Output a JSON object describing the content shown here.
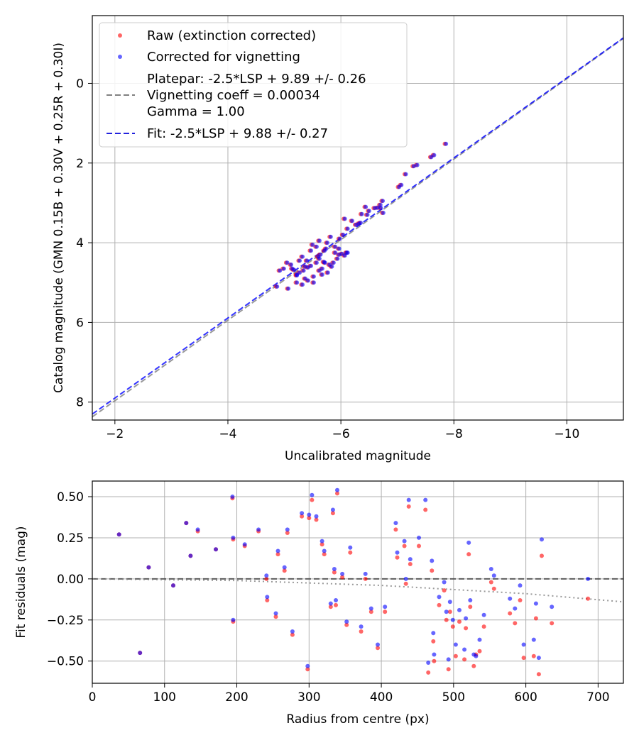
{
  "chart_data": [
    {
      "type": "scatter",
      "title": "",
      "xlabel": "Uncalibrated magnitude",
      "ylabel": "Catalog magnitude (GMN 0.15B + 0.30V + 0.25R + 0.30I)",
      "xlim": [
        -1.6,
        -11.0
      ],
      "ylim": [
        8.45,
        -1.7
      ],
      "x_inverted": true,
      "y_inverted": true,
      "xticks": [
        -2,
        -4,
        -6,
        -8,
        -10
      ],
      "xtick_labels": [
        "−2",
        "−4",
        "−6",
        "−8",
        "−10"
      ],
      "yticks": [
        0,
        2,
        4,
        6,
        8
      ],
      "ytick_labels": [
        "0",
        "2",
        "4",
        "6",
        "8"
      ],
      "grid": true,
      "legend": {
        "placement": "top-left",
        "entries": [
          "Raw (extinction corrected)",
          "Corrected for vignetting",
          "Platepar: -2.5*LSP + 9.89 +/- 0.26",
          "Vignetting coeff = 0.00034",
          "Gamma = 1.00",
          "Fit: -2.5*LSP + 9.88 +/- 0.27"
        ]
      },
      "series": [
        {
          "name": "Raw (extinction corrected)",
          "color": "#ff0000",
          "marker": "dot",
          "x": [
            -7.84,
            -7.63,
            -7.58,
            -7.33,
            -7.27,
            -7.13,
            -7.05,
            -7.01,
            -6.69,
            -6.73,
            -6.63,
            -6.58,
            -6.45,
            -6.42,
            -6.35,
            -6.3,
            -6.72,
            -6.68,
            -6.48,
            -6.33,
            -6.25,
            -6.18,
            -6.05,
            -6.1,
            -6.02,
            -5.96,
            -5.95,
            -6.08,
            -5.88,
            -5.8,
            -5.74,
            -5.69,
            -5.62,
            -5.6,
            -5.55,
            -5.45,
            -5.4,
            -5.32,
            -5.25,
            -5.2,
            -5.15,
            -5.1,
            -5.03,
            -4.97,
            -4.9,
            -4.85,
            -5.05,
            -5.2,
            -5.35,
            -5.5,
            -5.65,
            -5.75,
            -5.85,
            -5.95,
            -6.05,
            -6.1,
            -5.45,
            -5.55,
            -5.3,
            -5.38,
            -5.48,
            -5.6,
            -5.72,
            -5.82,
            -5.92,
            -6.0,
            -5.25,
            -5.12,
            -5.6,
            -5.7,
            -5.4,
            -5.5,
            -5.3,
            -5.2,
            -5.58,
            -5.68,
            -5.78,
            -5.88,
            -5.35,
            -5.65
          ],
          "y": [
            1.52,
            1.8,
            1.85,
            2.05,
            2.08,
            2.28,
            2.55,
            2.6,
            3.13,
            3.25,
            3.12,
            3.13,
            3.3,
            3.1,
            3.28,
            3.52,
            2.95,
            3.05,
            3.2,
            3.5,
            3.55,
            3.45,
            3.4,
            3.65,
            3.8,
            3.9,
            4.15,
            4.25,
            4.1,
            3.85,
            4.0,
            4.2,
            4.3,
            4.4,
            4.5,
            4.58,
            4.62,
            4.7,
            4.75,
            4.8,
            4.68,
            4.55,
            4.5,
            4.65,
            4.7,
            5.1,
            5.15,
            5.0,
            4.9,
            4.85,
            4.8,
            4.75,
            4.5,
            4.3,
            4.32,
            4.25,
            4.2,
            4.1,
            4.35,
            4.45,
            4.05,
            3.95,
            4.15,
            4.6,
            4.4,
            4.28,
            4.45,
            4.65,
            4.7,
            4.5,
            4.95,
            5.0,
            5.05,
            4.82,
            4.35,
            4.48,
            4.55,
            4.25,
            4.6,
            4.65
          ]
        },
        {
          "name": "Corrected for vignetting",
          "color": "#0000ff",
          "marker": "dot",
          "x": [
            -7.86,
            -7.65,
            -7.6,
            -7.35,
            -7.29,
            -7.15,
            -7.07,
            -7.03,
            -6.71,
            -6.75,
            -6.65,
            -6.6,
            -6.47,
            -6.44,
            -6.37,
            -6.32,
            -6.74,
            -6.7,
            -6.5,
            -6.35,
            -6.27,
            -6.2,
            -6.07,
            -6.12,
            -6.04,
            -5.98,
            -5.97,
            -6.1,
            -5.9,
            -5.82,
            -5.76,
            -5.71,
            -5.64,
            -5.62,
            -5.57,
            -5.47,
            -5.42,
            -5.34,
            -5.27,
            -5.22,
            -5.17,
            -5.12,
            -5.05,
            -4.99,
            -4.92,
            -4.87,
            -5.07,
            -5.22,
            -5.37,
            -5.52,
            -5.67,
            -5.77,
            -5.87,
            -5.97,
            -6.07,
            -6.12,
            -5.47,
            -5.57,
            -5.32,
            -5.4,
            -5.5,
            -5.62,
            -5.74,
            -5.84,
            -5.94,
            -6.02,
            -5.27,
            -5.14,
            -5.62,
            -5.72,
            -5.42,
            -5.52,
            -5.32,
            -5.22,
            -5.6,
            -5.7,
            -5.8,
            -5.9,
            -5.37,
            -5.67
          ],
          "y": [
            1.52,
            1.8,
            1.85,
            2.05,
            2.08,
            2.28,
            2.55,
            2.6,
            3.13,
            3.25,
            3.12,
            3.13,
            3.3,
            3.1,
            3.28,
            3.52,
            2.95,
            3.05,
            3.2,
            3.5,
            3.55,
            3.45,
            3.4,
            3.65,
            3.8,
            3.9,
            4.15,
            4.25,
            4.1,
            3.85,
            4.0,
            4.2,
            4.3,
            4.4,
            4.5,
            4.58,
            4.62,
            4.7,
            4.75,
            4.8,
            4.68,
            4.55,
            4.5,
            4.65,
            4.7,
            5.1,
            5.15,
            5.0,
            4.9,
            4.85,
            4.8,
            4.75,
            4.5,
            4.3,
            4.32,
            4.25,
            4.2,
            4.1,
            4.35,
            4.45,
            4.05,
            3.95,
            4.15,
            4.6,
            4.4,
            4.28,
            4.45,
            4.65,
            4.7,
            4.5,
            4.95,
            5.0,
            5.05,
            4.82,
            4.35,
            4.48,
            4.55,
            4.25,
            4.6,
            4.65
          ]
        }
      ],
      "lines": [
        {
          "name": "Vignetting coeff = 0.00034",
          "color": "#808080",
          "dash": "dashed",
          "x": [
            -1.6,
            -11.0
          ],
          "y": [
            8.37,
            -1.13
          ]
        },
        {
          "name": "Fit: -2.5*LSP + 9.88 +/- 0.27",
          "color": "#0000ff",
          "dash": "dashed",
          "x": [
            -1.6,
            -11.0
          ],
          "y": [
            8.3,
            -1.14
          ]
        }
      ]
    },
    {
      "type": "scatter",
      "title": "",
      "xlabel": "Radius from centre (px)",
      "ylabel": "Fit residuals (mag)",
      "xlim": [
        0,
        735
      ],
      "ylim": [
        -0.635,
        0.595
      ],
      "xticks": [
        0,
        100,
        200,
        300,
        400,
        500,
        600,
        700
      ],
      "xtick_labels": [
        "0",
        "100",
        "200",
        "300",
        "400",
        "500",
        "600",
        "700"
      ],
      "yticks": [
        0.5,
        0.25,
        0.0,
        -0.25,
        -0.5
      ],
      "ytick_labels": [
        "0.50",
        "0.25",
        "0.00",
        "−0.25",
        "−0.50"
      ],
      "grid": true,
      "series": [
        {
          "name": "Raw (extinction corrected)",
          "color": "#ff0000",
          "marker": "dot",
          "x": [
            37,
            66,
            78,
            112,
            130,
            136,
            146,
            171,
            194,
            195,
            195,
            211,
            230,
            241,
            242,
            254,
            257,
            266,
            270,
            277,
            290,
            298,
            300,
            304,
            310,
            318,
            321,
            330,
            333,
            335,
            337,
            339,
            346,
            352,
            357,
            372,
            378,
            386,
            395,
            405,
            420,
            422,
            432,
            434,
            438,
            440,
            452,
            461,
            465,
            470,
            472,
            473,
            480,
            487,
            490,
            493,
            495,
            499,
            503,
            508,
            515,
            517,
            521,
            523,
            528,
            531,
            536,
            542,
            552,
            556,
            578,
            585,
            592,
            597,
            611,
            614,
            618,
            622,
            636,
            686
          ],
          "y": [
            0.27,
            -0.45,
            0.07,
            -0.04,
            0.34,
            0.14,
            0.29,
            0.18,
            0.49,
            0.24,
            -0.26,
            0.2,
            0.29,
            0.0,
            -0.13,
            -0.23,
            0.15,
            0.05,
            0.28,
            -0.34,
            0.38,
            -0.55,
            0.37,
            0.48,
            0.36,
            0.21,
            0.15,
            -0.17,
            0.4,
            0.04,
            -0.16,
            0.52,
            0.01,
            -0.28,
            0.16,
            -0.32,
            0.0,
            -0.2,
            -0.42,
            -0.2,
            0.3,
            0.13,
            0.2,
            -0.03,
            0.44,
            0.09,
            0.2,
            0.42,
            -0.57,
            0.05,
            -0.38,
            -0.5,
            -0.16,
            -0.07,
            -0.25,
            -0.55,
            -0.2,
            -0.29,
            -0.47,
            -0.26,
            -0.49,
            -0.3,
            0.15,
            -0.17,
            -0.53,
            -0.46,
            -0.44,
            -0.29,
            -0.02,
            -0.06,
            -0.21,
            -0.27,
            -0.13,
            -0.48,
            -0.47,
            -0.24,
            -0.58,
            0.14,
            -0.27,
            -0.12
          ]
        },
        {
          "name": "Corrected for vignetting",
          "color": "#0000ff",
          "marker": "dot",
          "x": [
            37,
            66,
            78,
            112,
            130,
            136,
            146,
            171,
            194,
            195,
            195,
            211,
            230,
            241,
            242,
            254,
            257,
            266,
            270,
            277,
            290,
            298,
            300,
            304,
            310,
            318,
            321,
            330,
            333,
            335,
            337,
            339,
            346,
            352,
            357,
            372,
            378,
            386,
            395,
            405,
            420,
            422,
            432,
            434,
            438,
            440,
            452,
            461,
            465,
            470,
            472,
            473,
            480,
            487,
            490,
            493,
            495,
            499,
            503,
            508,
            515,
            517,
            521,
            523,
            528,
            531,
            536,
            542,
            552,
            556,
            578,
            585,
            592,
            597,
            611,
            614,
            618,
            622,
            636,
            686
          ],
          "y": [
            0.27,
            -0.45,
            0.07,
            -0.04,
            0.34,
            0.14,
            0.3,
            0.18,
            0.5,
            0.25,
            -0.25,
            0.21,
            0.3,
            0.02,
            -0.11,
            -0.21,
            0.17,
            0.07,
            0.3,
            -0.32,
            0.4,
            -0.53,
            0.39,
            0.51,
            0.38,
            0.23,
            0.17,
            -0.15,
            0.42,
            0.06,
            -0.13,
            0.54,
            0.03,
            -0.26,
            0.19,
            -0.29,
            0.03,
            -0.18,
            -0.4,
            -0.17,
            0.34,
            0.16,
            0.23,
            0.0,
            0.48,
            0.12,
            0.25,
            0.48,
            -0.51,
            0.11,
            -0.33,
            -0.46,
            -0.11,
            -0.02,
            -0.2,
            -0.49,
            -0.14,
            -0.25,
            -0.4,
            -0.19,
            -0.43,
            -0.24,
            0.22,
            -0.13,
            -0.46,
            -0.47,
            -0.37,
            -0.22,
            0.06,
            0.02,
            -0.12,
            -0.18,
            -0.04,
            -0.4,
            -0.37,
            -0.15,
            -0.48,
            0.24,
            -0.17,
            0.0
          ]
        }
      ],
      "lines": [
        {
          "name": "zero-line",
          "color": "#404040",
          "dash": "dashed",
          "x": [
            0,
            735
          ],
          "y": [
            0.0,
            0.0
          ]
        },
        {
          "name": "vignetting-model",
          "color": "#808080",
          "dash": "dotted",
          "x": [
            0,
            200,
            400,
            600,
            735
          ],
          "y": [
            0.0,
            -0.01,
            -0.04,
            -0.09,
            -0.14
          ]
        }
      ]
    }
  ]
}
